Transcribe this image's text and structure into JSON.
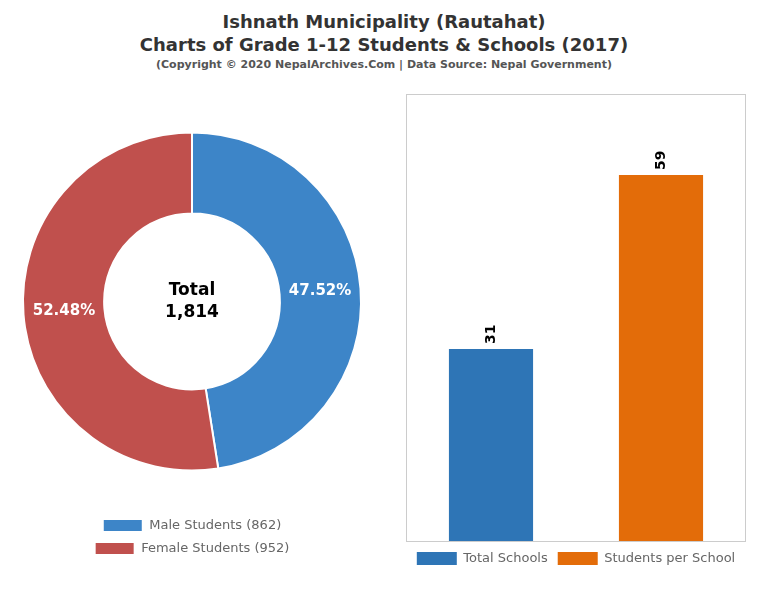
{
  "title": [
    "Ishnath Municipality (Rautahat)",
    "Charts of Grade 1-12 Students & Schools (2017)"
  ],
  "subtitle": "(Copyright © 2020 NepalArchives.Com | Data Source: Nepal Government)",
  "chart_data": [
    {
      "type": "doughnut",
      "categories": [
        "Male Students (862)",
        "Female Students (952)"
      ],
      "values": [
        47.52,
        52.48
      ],
      "value_labels": [
        "47.52%",
        "52.48%"
      ],
      "data_labels": true,
      "colors": [
        "#3d85c8",
        "#c0504d"
      ],
      "annotations": [
        "Total",
        "1,814"
      ],
      "legend": "bottom"
    },
    {
      "type": "bar",
      "categories": [
        null,
        null
      ],
      "series": [
        {
          "name": "Total Schools",
          "color": "#2e75b6",
          "values": [
            31,
            null
          ]
        },
        {
          "name": "Students per School",
          "color": "#e36c09",
          "values": [
            null,
            59
          ]
        }
      ],
      "ylim": [
        0,
        72
      ],
      "data_labels": true,
      "tick_labels": false,
      "grid": false,
      "legend": "bottom"
    }
  ]
}
